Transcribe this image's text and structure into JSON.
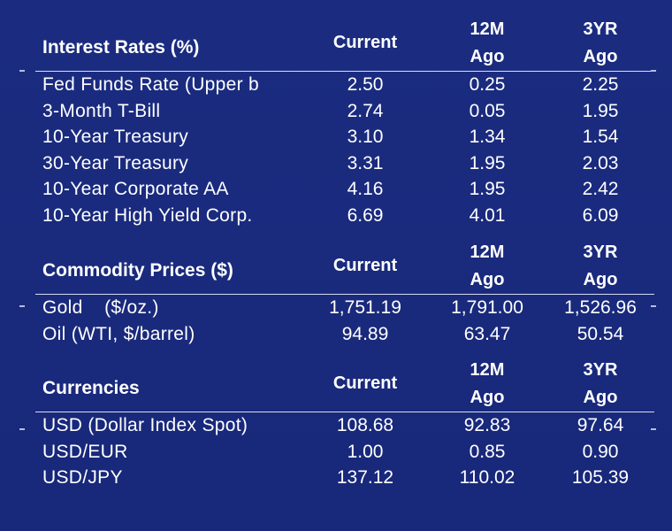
{
  "interest_rates": {
    "title": "Interest Rates (%)",
    "columns": [
      "Current",
      "12M Ago",
      "3YR Ago"
    ],
    "col1": "Current",
    "col2_line1": "12M",
    "col2_line2": "Ago",
    "col3_line1": "3YR",
    "col3_line2": "Ago",
    "rows": [
      {
        "label": "Fed Funds Rate (Upper b",
        "current": "2.50",
        "m12": "0.25",
        "yr3": "2.25"
      },
      {
        "label": "3-Month T-Bill",
        "current": "2.74",
        "m12": "0.05",
        "yr3": "1.95"
      },
      {
        "label": "10-Year Treasury",
        "current": "3.10",
        "m12": "1.34",
        "yr3": "1.54"
      },
      {
        "label": "30-Year Treasury",
        "current": "3.31",
        "m12": "1.95",
        "yr3": "2.03"
      },
      {
        "label": "10-Year Corporate AA",
        "current": "4.16",
        "m12": "1.95",
        "yr3": "2.42"
      },
      {
        "label": "10-Year High Yield Corp.",
        "current": "6.69",
        "m12": "4.01",
        "yr3": "6.09"
      }
    ]
  },
  "commodity_prices": {
    "title": "Commodity Prices ($)",
    "col1": "Current",
    "col2_line1": "12M",
    "col2_line2": "Ago",
    "col3_line1": "3YR",
    "col3_line2": "Ago",
    "rows": [
      {
        "label": "Gold    ($/oz.)",
        "current": "1,751.19",
        "m12": "1,791.00",
        "yr3": "1,526.96"
      },
      {
        "label": "Oil (WTI, $/barrel)",
        "current": "94.89",
        "m12": "63.47",
        "yr3": "50.54"
      }
    ]
  },
  "currencies": {
    "title": "Currencies",
    "col1": "Current",
    "col2_line1": "12M",
    "col2_line2": "Ago",
    "col3_line1": "3YR",
    "col3_line2": "Ago",
    "rows": [
      {
        "label": "USD (Dollar Index Spot)",
        "current": "108.68",
        "m12": "92.83",
        "yr3": "97.64"
      },
      {
        "label": "USD/EUR",
        "current": "1.00",
        "m12": "0.85",
        "yr3": "0.90"
      },
      {
        "label": "USD/JPY",
        "current": "137.12",
        "m12": "110.02",
        "yr3": "105.39"
      }
    ]
  },
  "colors": {
    "background": "#1a2a7a",
    "text": "#ffffff",
    "rule": "#d8dcf0"
  }
}
